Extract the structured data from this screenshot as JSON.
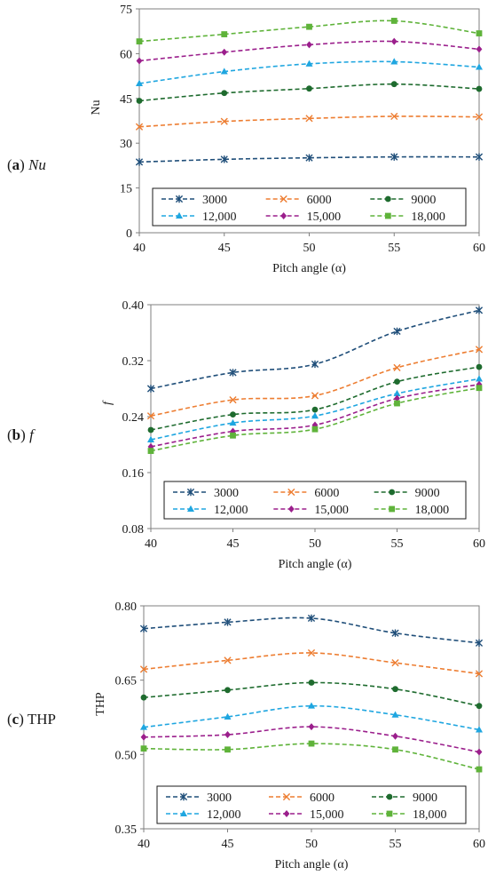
{
  "panels": [
    {
      "letter": "a",
      "var": "Nu",
      "label_style": "italic",
      "chart_data": {
        "type": "line",
        "x": [
          40,
          45,
          50,
          55,
          60
        ],
        "xlabel": "Pitch angle (α)",
        "ylabel": "Nu",
        "ylabel_style": "normal",
        "ylim": [
          0,
          75
        ],
        "yticks": [
          "0",
          "15",
          "30",
          "45",
          "60",
          "75"
        ],
        "yticks_num": [
          0,
          15,
          30,
          45,
          60,
          75
        ],
        "xticks": [
          "40",
          "45",
          "50",
          "55",
          "60"
        ],
        "legend_position": "bottom",
        "series": [
          {
            "name": "3000",
            "color": "#1f4e79",
            "marker": "star",
            "values": [
              23.7,
              24.6,
              25.1,
              25.4,
              25.4
            ]
          },
          {
            "name": "6000",
            "color": "#ed7d31",
            "marker": "x",
            "values": [
              35.5,
              37.3,
              38.3,
              39.0,
              38.8
            ]
          },
          {
            "name": "9000",
            "color": "#1e6b2e",
            "marker": "circle",
            "values": [
              44.2,
              46.8,
              48.3,
              49.8,
              48.2
            ]
          },
          {
            "name": "12,000",
            "color": "#1fa6e0",
            "marker": "triangle",
            "values": [
              50.0,
              54.0,
              56.6,
              57.3,
              55.5
            ]
          },
          {
            "name": "15,000",
            "color": "#9b1f8c",
            "marker": "diamond",
            "values": [
              57.6,
              60.5,
              63.0,
              64.1,
              61.5
            ]
          },
          {
            "name": "18,000",
            "color": "#5fb33a",
            "marker": "square",
            "values": [
              64.1,
              66.5,
              69.0,
              71.0,
              66.8
            ]
          }
        ]
      }
    },
    {
      "letter": "b",
      "var": "f",
      "label_style": "italic",
      "chart_data": {
        "type": "line",
        "x": [
          40,
          45,
          50,
          55,
          60
        ],
        "xlabel": "Pitch angle (α)",
        "ylabel": "f",
        "ylabel_style": "italic",
        "ylim": [
          0.08,
          0.4
        ],
        "yticks": [
          "0.08",
          "0.16",
          "0.24",
          "0.32",
          "0.40"
        ],
        "yticks_num": [
          0.08,
          0.16,
          0.24,
          0.32,
          0.4
        ],
        "xticks": [
          "40",
          "45",
          "50",
          "55",
          "60"
        ],
        "legend_position": "bottom",
        "series": [
          {
            "name": "3000",
            "color": "#1f4e79",
            "marker": "star",
            "values": [
              0.28,
              0.303,
              0.315,
              0.362,
              0.392
            ]
          },
          {
            "name": "6000",
            "color": "#ed7d31",
            "marker": "x",
            "values": [
              0.241,
              0.264,
              0.27,
              0.31,
              0.336
            ]
          },
          {
            "name": "9000",
            "color": "#1e6b2e",
            "marker": "circle",
            "values": [
              0.221,
              0.243,
              0.25,
              0.29,
              0.311
            ]
          },
          {
            "name": "12,000",
            "color": "#1fa6e0",
            "marker": "triangle",
            "values": [
              0.207,
              0.231,
              0.241,
              0.273,
              0.294
            ]
          },
          {
            "name": "15,000",
            "color": "#9b1f8c",
            "marker": "diamond",
            "values": [
              0.197,
              0.219,
              0.228,
              0.266,
              0.286
            ]
          },
          {
            "name": "18,000",
            "color": "#5fb33a",
            "marker": "square",
            "values": [
              0.191,
              0.213,
              0.222,
              0.259,
              0.281
            ]
          }
        ]
      }
    },
    {
      "letter": "c",
      "var": "THP",
      "label_style": "normal",
      "chart_data": {
        "type": "line",
        "x": [
          40,
          45,
          50,
          55,
          60
        ],
        "xlabel": "Pitch angle (α)",
        "ylabel": "THP",
        "ylabel_style": "normal",
        "ylim": [
          0.35,
          0.8
        ],
        "yticks": [
          "0.35",
          "0.50",
          "0.65",
          "0.80"
        ],
        "yticks_num": [
          0.35,
          0.5,
          0.65,
          0.8
        ],
        "xticks": [
          "40",
          "45",
          "50",
          "55",
          "60"
        ],
        "legend_position": "bottom",
        "series": [
          {
            "name": "3000",
            "color": "#1f4e79",
            "marker": "star",
            "values": [
              0.754,
              0.767,
              0.775,
              0.745,
              0.725
            ]
          },
          {
            "name": "6000",
            "color": "#ed7d31",
            "marker": "x",
            "values": [
              0.672,
              0.69,
              0.705,
              0.685,
              0.663
            ]
          },
          {
            "name": "9000",
            "color": "#1e6b2e",
            "marker": "circle",
            "values": [
              0.615,
              0.63,
              0.645,
              0.632,
              0.598
            ]
          },
          {
            "name": "12,000",
            "color": "#1fa6e0",
            "marker": "triangle",
            "values": [
              0.555,
              0.576,
              0.598,
              0.58,
              0.55
            ]
          },
          {
            "name": "15,000",
            "color": "#9b1f8c",
            "marker": "diamond",
            "values": [
              0.535,
              0.54,
              0.556,
              0.537,
              0.505
            ]
          },
          {
            "name": "18,000",
            "color": "#5fb33a",
            "marker": "square",
            "values": [
              0.512,
              0.51,
              0.522,
              0.51,
              0.47
            ]
          }
        ]
      }
    }
  ]
}
